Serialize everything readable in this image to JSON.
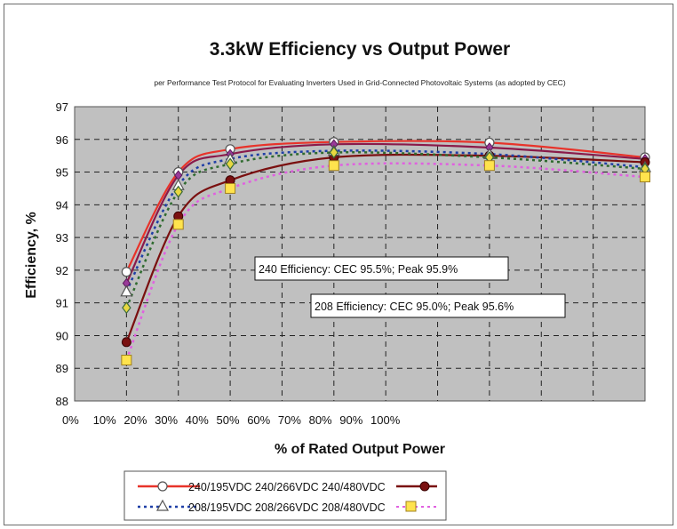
{
  "chart_data": {
    "type": "line",
    "title": "3.3kW Efficiency vs Output Power",
    "subtitle": "per Performance Test Protocol for Evaluating Inverters Used in Grid-Connected Photovoltaic Systems (as adopted by CEC)",
    "xlabel": "% of Rated Output Power",
    "ylabel": "Efficiency, %",
    "ylim": [
      88,
      97
    ],
    "yticks": [
      "88",
      "89",
      "90",
      "91",
      "92",
      "93",
      "94",
      "95",
      "96",
      "97"
    ],
    "xtick_labels": [
      "0%",
      "10%",
      "20%",
      "30%",
      "40%",
      "50%",
      "60%",
      "70%",
      "80%",
      "90%",
      "100%"
    ],
    "x": [
      20,
      40,
      60,
      100,
      160,
      220
    ],
    "grid": true,
    "legend": "bottom",
    "annotations": [
      "240 Efficiency: CEC 95.5%; Peak 95.9%",
      "208 Efficiency: CEC 95.0%; Peak 95.6%"
    ],
    "legend_rows": [
      "240/195VDC 240/266VDC 240/480VDC",
      "208/195VDC 208/266VDC 208/480VDC"
    ],
    "series": [
      {
        "values": [
          91.95,
          95.0,
          95.7,
          95.92,
          95.9,
          95.45
        ],
        "color": "#e8332a",
        "marker": "circle-open",
        "dash": "solid"
      },
      {
        "values": [
          91.6,
          94.9,
          95.55,
          95.85,
          95.75,
          95.4
        ],
        "color": "#8a1a4a",
        "marker": "diamond",
        "dash": "solid"
      },
      {
        "values": [
          89.8,
          93.65,
          94.75,
          95.45,
          95.5,
          95.3
        ],
        "color": "#7a1010",
        "marker": "circle-filled",
        "dash": "solid"
      },
      {
        "values": [
          91.35,
          94.6,
          95.4,
          95.65,
          95.55,
          95.15
        ],
        "color": "#1f3fa6",
        "marker": "triangle-open",
        "dash": "dot"
      },
      {
        "values": [
          90.85,
          94.4,
          95.25,
          95.6,
          95.45,
          95.1
        ],
        "color": "#2f6b2f",
        "marker": "diamond-yellow",
        "dash": "dot"
      },
      {
        "values": [
          89.25,
          93.4,
          94.5,
          95.2,
          95.2,
          94.85
        ],
        "color": "#e060e0",
        "marker": "square-yellow",
        "dash": "dot"
      }
    ]
  }
}
